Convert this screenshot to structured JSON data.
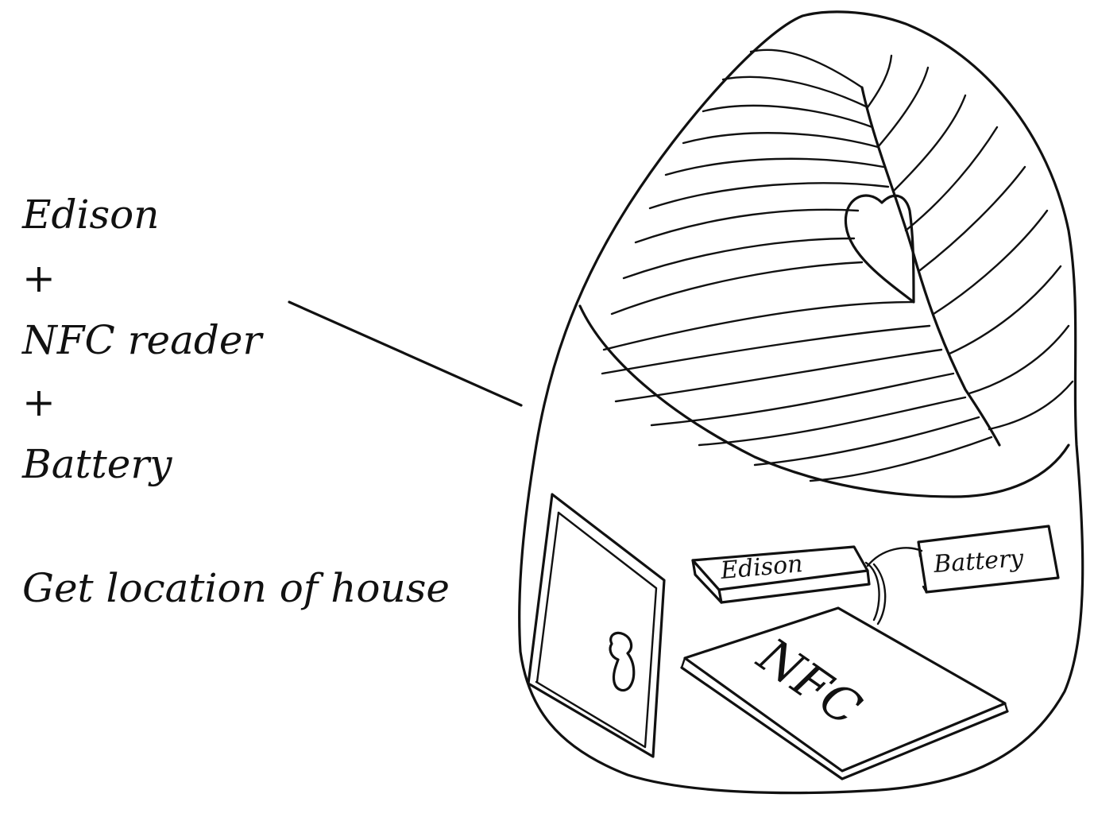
{
  "annotation": {
    "lines": [
      "Edison",
      "+",
      "NFC reader",
      "+",
      "Battery"
    ],
    "caption": "Get location of house"
  },
  "device_labels": {
    "edison": "Edison",
    "battery": "Battery",
    "nfc": "NFC"
  },
  "colors": {
    "ink": "#111111",
    "background": "#ffffff"
  }
}
